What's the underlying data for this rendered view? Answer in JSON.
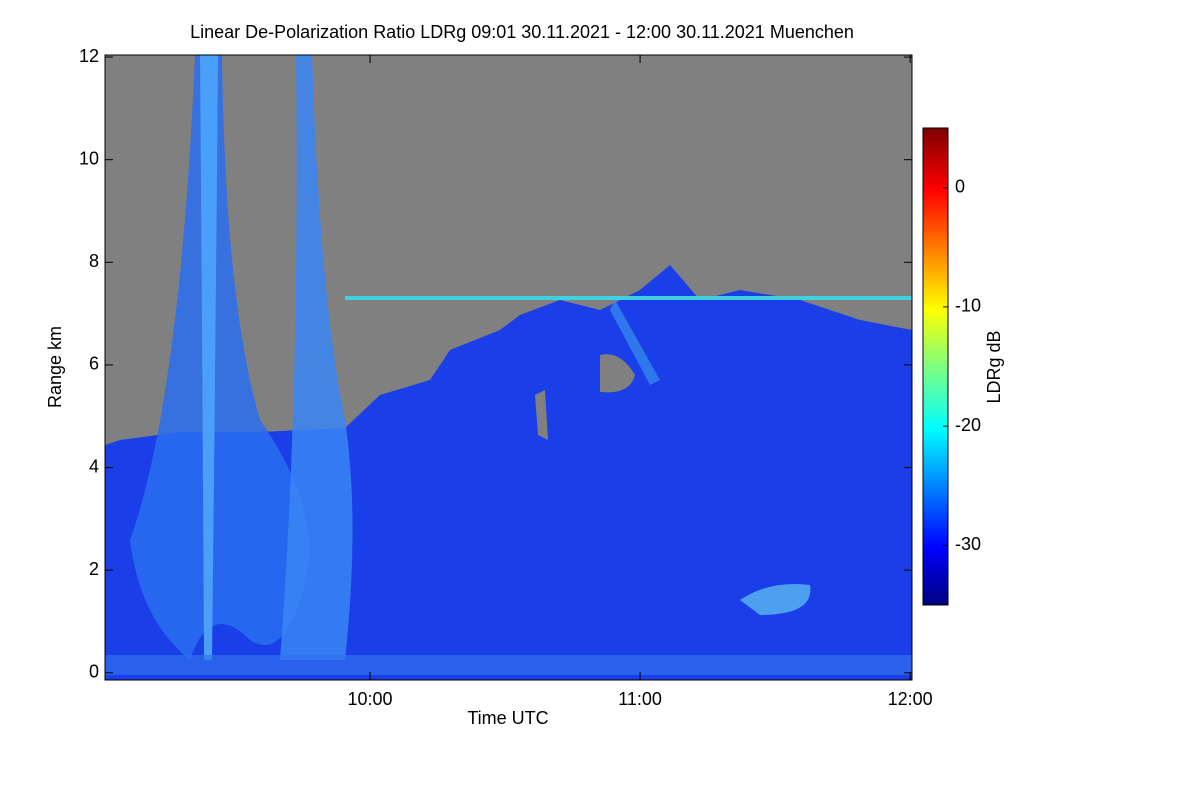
{
  "chart_data": {
    "type": "heatmap",
    "title": "Linear De-Polarization Ratio LDRg   09:01 30.11.2021 - 12:00 30.11.2021 Muenchen",
    "x_label": "Time UTC",
    "y_label": "Range km",
    "colorbar_label": "LDRg dB",
    "xlim": [
      9.0185,
      12.007
    ],
    "xticks": [
      {
        "value": 10,
        "label": "10:00"
      },
      {
        "value": 11,
        "label": "11:00"
      },
      {
        "value": 12,
        "label": "12:00"
      }
    ],
    "ylim": [
      -0.14,
      12.04
    ],
    "yticks": [
      0,
      2,
      4,
      6,
      8,
      10,
      12
    ],
    "clim": [
      -35,
      5
    ],
    "cticks": [
      0,
      -10,
      -20,
      -30
    ]
  }
}
